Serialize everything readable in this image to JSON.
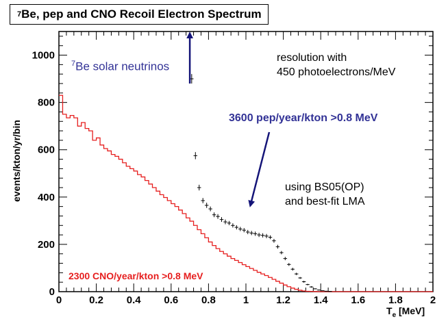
{
  "chart_data": {
    "type": "line",
    "title_pre": "7",
    "title_main": "Be, pep and CNO Recoil Electron Spectrum",
    "xlabel_main": "T",
    "xlabel_sub": "e",
    "xlabel_unit": " [MeV]",
    "ylabel": "events/kton/yr/bin",
    "xlim": [
      0,
      2
    ],
    "ylim": [
      0,
      1100
    ],
    "x_ticks": [
      "0",
      "0.2",
      "0.4",
      "0.6",
      "0.8",
      "1",
      "1.2",
      "1.4",
      "1.6",
      "1.8",
      "2"
    ],
    "y_ticks": [
      "0",
      "200",
      "400",
      "600",
      "800",
      "1000"
    ],
    "colors": {
      "cno": "#e61e1e",
      "total": "#000000",
      "annotation_blue": "#323296",
      "arrow": "#141478"
    },
    "series": [
      {
        "name": "CNO spectrum",
        "style": "step",
        "x": [
          0,
          0.02,
          0.04,
          0.06,
          0.08,
          0.1,
          0.12,
          0.14,
          0.16,
          0.18,
          0.2,
          0.22,
          0.24,
          0.26,
          0.28,
          0.3,
          0.32,
          0.34,
          0.36,
          0.38,
          0.4,
          0.42,
          0.44,
          0.46,
          0.48,
          0.5,
          0.52,
          0.54,
          0.56,
          0.58,
          0.6,
          0.62,
          0.64,
          0.66,
          0.68,
          0.7,
          0.72,
          0.74,
          0.76,
          0.78,
          0.8,
          0.82,
          0.84,
          0.86,
          0.88,
          0.9,
          0.92,
          0.94,
          0.96,
          0.98,
          1.0,
          1.02,
          1.04,
          1.06,
          1.08,
          1.1,
          1.12,
          1.14,
          1.16,
          1.18,
          1.2,
          1.22,
          1.24,
          1.26,
          1.28,
          1.3,
          1.32,
          1.34,
          1.36,
          1.38,
          1.4,
          1.42,
          1.44,
          1.46,
          1.48,
          1.5,
          1.52,
          1.54,
          1.56,
          1.58,
          1.6,
          1.62,
          1.64,
          1.66,
          1.68,
          1.7,
          1.72,
          1.74,
          1.76,
          1.78,
          1.8,
          1.82,
          1.84,
          1.86,
          1.88,
          1.9,
          1.92,
          1.94,
          1.96,
          1.98
        ],
        "values": [
          830,
          750,
          735,
          745,
          735,
          700,
          715,
          690,
          680,
          640,
          650,
          620,
          605,
          595,
          580,
          572,
          560,
          545,
          530,
          520,
          510,
          495,
          485,
          470,
          455,
          440,
          425,
          410,
          398,
          385,
          372,
          360,
          345,
          330,
          312,
          298,
          280,
          262,
          245,
          228,
          210,
          195,
          182,
          170,
          160,
          150,
          140,
          132,
          123,
          114,
          106,
          98,
          90,
          82,
          75,
          68,
          60,
          52,
          44,
          36,
          28,
          21,
          15,
          10,
          6,
          3,
          1.5,
          1,
          0.5,
          0,
          0,
          0,
          0,
          0,
          0,
          0,
          0,
          0,
          0,
          0,
          0,
          0,
          0,
          0,
          0,
          0,
          0,
          0,
          0,
          0,
          0,
          0,
          0,
          0,
          0,
          0,
          0,
          0,
          0,
          0
        ]
      },
      {
        "name": "Total with error bars",
        "style": "errorbar",
        "x": [
          0.71,
          0.73,
          0.75,
          0.77,
          0.79,
          0.81,
          0.83,
          0.85,
          0.87,
          0.89,
          0.91,
          0.93,
          0.95,
          0.97,
          0.99,
          1.01,
          1.03,
          1.05,
          1.07,
          1.09,
          1.11,
          1.13,
          1.15,
          1.17,
          1.19,
          1.21,
          1.23,
          1.25,
          1.27,
          1.29,
          1.31,
          1.33,
          1.35,
          1.37,
          1.39,
          1.41,
          1.43,
          1.45
        ],
        "values": [
          900,
          575,
          440,
          385,
          365,
          350,
          325,
          318,
          305,
          295,
          290,
          280,
          272,
          265,
          260,
          252,
          248,
          245,
          240,
          238,
          235,
          230,
          215,
          190,
          165,
          140,
          115,
          95,
          75,
          58,
          42,
          30,
          20,
          12,
          7,
          4,
          2,
          1
        ],
        "errors": [
          20,
          15,
          12,
          11,
          11,
          10,
          10,
          10,
          10,
          10,
          9,
          9,
          9,
          9,
          9,
          9,
          9,
          9,
          9,
          9,
          9,
          8,
          8,
          8,
          7,
          7,
          6,
          6,
          5,
          4,
          4,
          3,
          3,
          2,
          2,
          1,
          1,
          1
        ]
      }
    ],
    "annotations": {
      "be7_pre": "7",
      "be7_main": "Be solar neutrinos",
      "resolution_line1": "resolution with",
      "resolution_line2": "450 photoelectrons/MeV",
      "pep": "3600 pep/year/kton >0.8 MeV",
      "using_line1": "using BS05(OP)",
      "using_line2": "and best-fit LMA",
      "cno": "2300 CNO/year/kton >0.8 MeV"
    }
  }
}
